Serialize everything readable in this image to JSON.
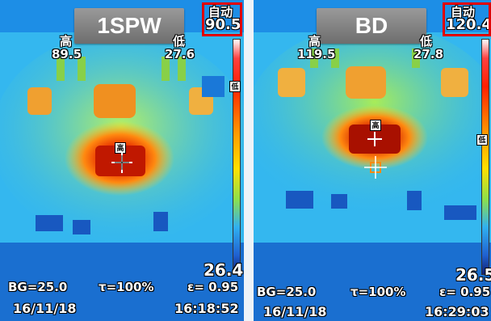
{
  "left_panel": {
    "title": "1SPW",
    "mode": "自动",
    "max_temp": "90.5",
    "hi_label": "高",
    "hi_value": "89.5",
    "lo_label": "低",
    "lo_value": "27.6",
    "scale_min": "26.4",
    "scale_lo_marker": "低",
    "spot_label": "高",
    "bg": "BG=25.0",
    "tau": "τ=100%",
    "eps": "ε= 0.95",
    "date": "16/11/18",
    "time": "16:18:52"
  },
  "right_panel": {
    "title": "BD",
    "mode": "自动",
    "max_temp": "120.4",
    "hi_label": "高",
    "hi_value": "119.5",
    "lo_label": "低",
    "lo_value": "27.8",
    "scale_min": "26.5",
    "scale_lo_marker": "低",
    "spot_label": "高",
    "bg": "BG=25.0",
    "tau": "τ=100%",
    "eps": "ε= 0.95",
    "date": "16/11/18",
    "time": "16:29:03"
  }
}
